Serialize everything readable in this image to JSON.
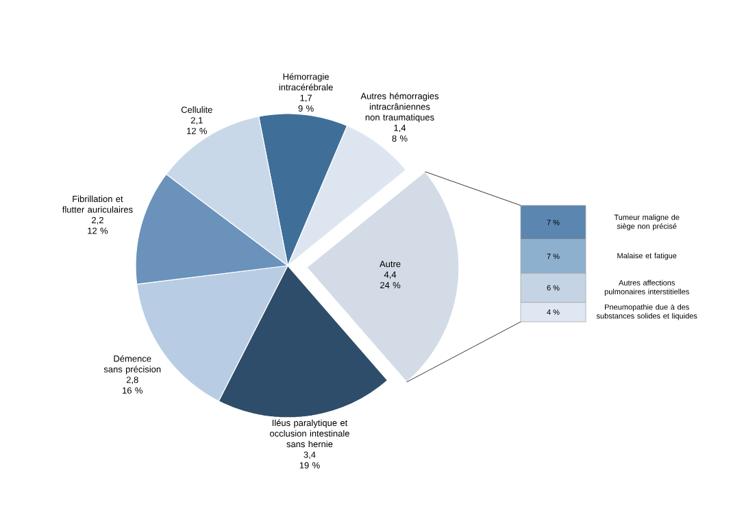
{
  "chart_data": [
    {
      "type": "pie",
      "categories": [
        "Hémorragie intracérébrale",
        "Autres hémorragies intracrâniennes non traumatiques",
        "Autre",
        "Iléus paralytique et occlusion intestinale sans hernie",
        "Démence sans précision",
        "Fibrillation et flutter auriculaires",
        "Cellulite"
      ],
      "values": [
        1.7,
        1.4,
        4.4,
        3.4,
        2.8,
        2.2,
        2.1
      ],
      "value_labels": [
        "1,7",
        "1,4",
        "4,4",
        "3,4",
        "2,8",
        "2,2",
        "2,1"
      ],
      "colors": [
        "#3f6f99",
        "#dde6f0",
        "#d3dbe6",
        "#2e4d6b",
        "#b8cde3",
        "#6a92bb",
        "#c8d8e8"
      ],
      "annotations": [
        "9 %",
        "8 %",
        "24 %",
        "19 %",
        "16 %",
        "12 %",
        "12 %"
      ]
    },
    {
      "type": "bar",
      "stacked": true,
      "categories": [
        null
      ],
      "series": [
        {
          "name": "Pneumopathie due à des substances solides et liquides",
          "color": "#dfe8f2",
          "values": [
            4
          ],
          "value_labels": [
            "4 %"
          ]
        },
        {
          "name": "Autres affections pulmonaires interstitielles",
          "color": "#c4d4e5",
          "values": [
            6
          ],
          "value_labels": [
            "6 %"
          ]
        },
        {
          "name": "Malaise et fatigue",
          "color": "#8eb0cf",
          "values": [
            7
          ],
          "value_labels": [
            "7 %"
          ]
        },
        {
          "name": "Tumeur maligne de siège non précisé",
          "color": "#5b86b0",
          "values": [
            7
          ],
          "value_labels": [
            "7 %"
          ]
        }
      ]
    }
  ]
}
